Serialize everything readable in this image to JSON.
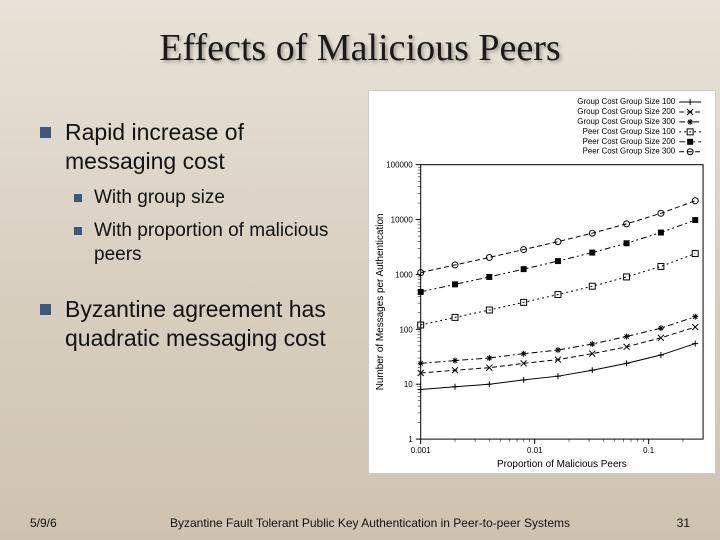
{
  "title": "Effects of Malicious Peers",
  "bullets": {
    "b1": "Rapid increase of messaging cost",
    "b1a": "With group size",
    "b1b": "With proportion of malicious peers",
    "b2": "Byzantine agreement has quadratic messaging cost"
  },
  "footer": {
    "date": "5/9/6",
    "caption": "Byzantine Fault Tolerant Public Key Authentication in Peer-to-peer Systems",
    "page": "31"
  },
  "chart": {
    "type": "line",
    "background_color": "#ffffff",
    "xlabel": "Proportion of Malicious Peers",
    "ylabel": "Number of Messages per Authentication",
    "x_scale": "log",
    "y_scale": "log",
    "xlim": [
      0.001,
      0.3
    ],
    "ylim": [
      1,
      100000
    ],
    "xticks": [
      0.001,
      0.01,
      0.1
    ],
    "xticklabels": [
      "0.001",
      "0.01",
      "0.1"
    ],
    "yticks": [
      1,
      10,
      100,
      1000,
      10000,
      100000
    ],
    "yticklabels": [
      "1",
      "10",
      "100",
      "1000",
      "10000",
      "100000"
    ],
    "axis_color": "#000000",
    "tick_color": "#000000",
    "label_fontsize": 10,
    "tick_fontsize": 8,
    "legend": {
      "position": "top-right-outside",
      "fontsize": 8,
      "items": [
        {
          "label": "Group Cost Group Size 100",
          "marker": "+",
          "dash": "solid"
        },
        {
          "label": "Group Cost Group Size 200",
          "marker": "x",
          "dash": "dash"
        },
        {
          "label": "Group Cost Group Size 300",
          "marker": "*",
          "dash": "dashdot"
        },
        {
          "label": "Peer Cost Group Size 100",
          "marker": "square",
          "dash": "dot"
        },
        {
          "label": "Peer Cost Group Size 200",
          "marker": "square-filled",
          "dash": "dashdotdot"
        },
        {
          "label": "Peer Cost Group Size 300",
          "marker": "circle",
          "dash": "dash"
        }
      ]
    },
    "series": [
      {
        "name": "gc100",
        "marker": "+",
        "dash": "solid",
        "x": [
          0.001,
          0.002,
          0.004,
          0.008,
          0.016,
          0.032,
          0.064,
          0.128,
          0.256
        ],
        "y": [
          8,
          9,
          10,
          12,
          14,
          18,
          24,
          34,
          55
        ]
      },
      {
        "name": "gc200",
        "marker": "x",
        "dash": "dash",
        "x": [
          0.001,
          0.002,
          0.004,
          0.008,
          0.016,
          0.032,
          0.064,
          0.128,
          0.256
        ],
        "y": [
          16,
          18,
          20,
          24,
          28,
          36,
          48,
          70,
          110
        ]
      },
      {
        "name": "gc300",
        "marker": "*",
        "dash": "dashdot",
        "x": [
          0.001,
          0.002,
          0.004,
          0.008,
          0.016,
          0.032,
          0.064,
          0.128,
          0.256
        ],
        "y": [
          24,
          27,
          30,
          36,
          42,
          54,
          74,
          105,
          170
        ]
      },
      {
        "name": "pc100",
        "marker": "square",
        "dash": "dot",
        "x": [
          0.001,
          0.002,
          0.004,
          0.008,
          0.016,
          0.032,
          0.064,
          0.128,
          0.256
        ],
        "y": [
          120,
          165,
          225,
          310,
          430,
          610,
          900,
          1400,
          2400
        ]
      },
      {
        "name": "pc200",
        "marker": "square-filled",
        "dash": "dashdotdot",
        "x": [
          0.001,
          0.002,
          0.004,
          0.008,
          0.016,
          0.032,
          0.064,
          0.128,
          0.256
        ],
        "y": [
          480,
          660,
          900,
          1250,
          1750,
          2500,
          3700,
          5800,
          9800
        ]
      },
      {
        "name": "pc300",
        "marker": "circle",
        "dash": "dash",
        "x": [
          0.001,
          0.002,
          0.004,
          0.008,
          0.016,
          0.032,
          0.064,
          0.128,
          0.256
        ],
        "y": [
          1080,
          1490,
          2040,
          2840,
          3960,
          5650,
          8350,
          13000,
          22000
        ]
      }
    ]
  }
}
